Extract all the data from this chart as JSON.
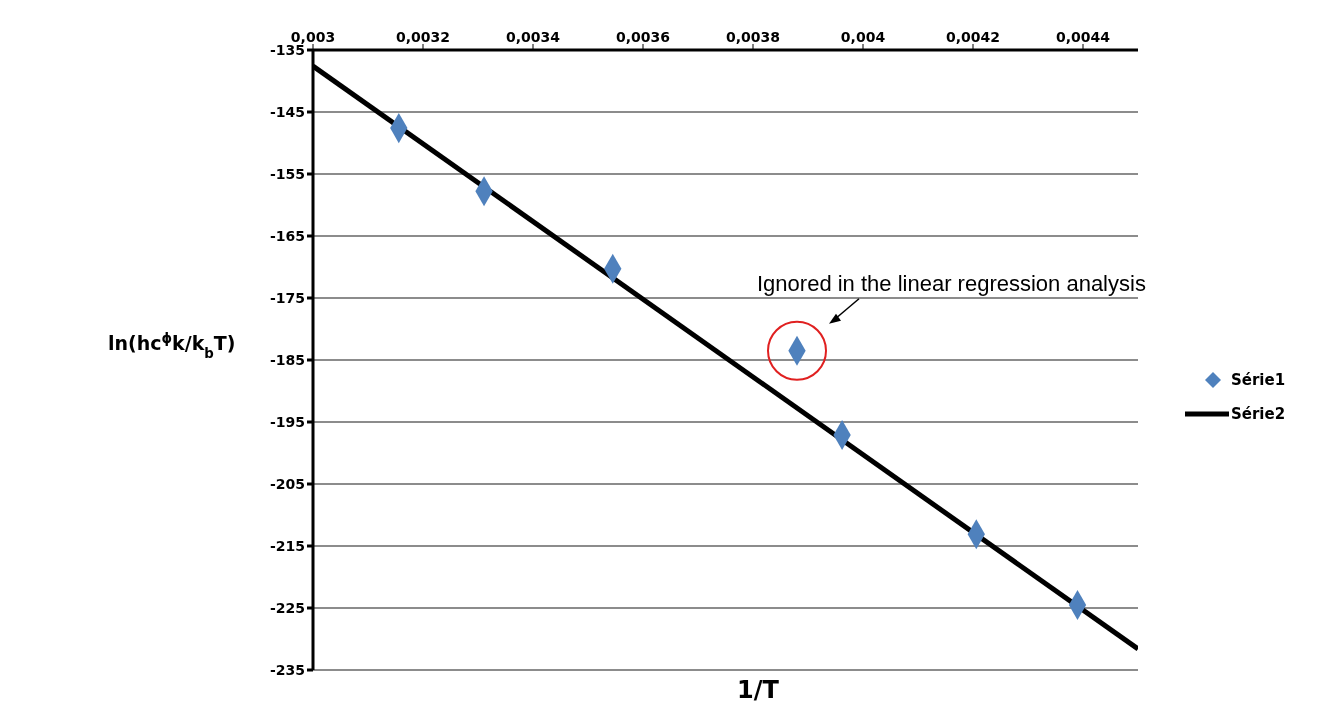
{
  "chart_data": {
    "type": "scatter",
    "xlabel": "1/T",
    "ylabel": "ln(hc$^{ϕ}$k/k$_{b}$T)",
    "series": [
      {
        "name": "Série1",
        "color": "#4f81bd",
        "marker": "diamond",
        "x": [
          0.003156,
          0.003311,
          0.003545,
          0.00388,
          0.003962,
          0.004206,
          0.00439
        ],
        "values": [
          -147.6,
          -157.8,
          -170.3,
          -183.5,
          -197.1,
          -213.1,
          -224.5
        ]
      },
      {
        "name": "Série2",
        "type": "line",
        "color": "#000000",
        "marker": "none",
        "line_style": "solid",
        "x": [
          0.003,
          0.0045
        ],
        "values": [
          -137.6,
          -231.6
        ]
      }
    ],
    "xlim": [
      0.003,
      0.0045
    ],
    "xticks": [
      {
        "value": 0.003,
        "label": "0,003"
      },
      {
        "value": 0.0032,
        "label": "0,0032"
      },
      {
        "value": 0.0034,
        "label": "0,0034"
      },
      {
        "value": 0.0036,
        "label": "0,0036"
      },
      {
        "value": 0.0038,
        "label": "0,0038"
      },
      {
        "value": 0.004,
        "label": "0,004"
      },
      {
        "value": 0.0042,
        "label": "0,0042"
      },
      {
        "value": 0.0044,
        "label": "0,0044"
      }
    ],
    "ylim": [
      -235,
      -135
    ],
    "yticks": [
      -235,
      -225,
      -215,
      -205,
      -195,
      -185,
      -175,
      -165,
      -155,
      -145,
      -135
    ],
    "grid": "y",
    "legend": "right",
    "annotations": [
      {
        "text": "Ignored in the linear regression analysis",
        "x": 0.00388,
        "y": -183.5
      }
    ]
  }
}
